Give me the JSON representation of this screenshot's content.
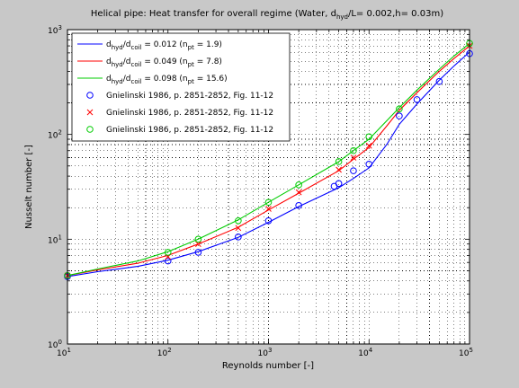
{
  "chart_data": {
    "type": "line",
    "title": {
      "pre": "Helical pipe: Heat transfer for overall regime (Water, d",
      "sub": "hyd",
      "post": "/L= 0.002,h= 0.03m)"
    },
    "xlabel": "Reynolds number [-]",
    "ylabel": "Nusselt number [-]",
    "xscale": "log",
    "yscale": "log",
    "xlim": [
      10,
      100000
    ],
    "ylim": [
      1,
      1000
    ],
    "grid": true,
    "legend_position": "top-left",
    "x_ticks": [
      {
        "base": "10",
        "exp": "1"
      },
      {
        "base": "10",
        "exp": "2"
      },
      {
        "base": "10",
        "exp": "3"
      },
      {
        "base": "10",
        "exp": "4"
      },
      {
        "base": "10",
        "exp": "5"
      }
    ],
    "y_ticks": [
      {
        "base": "10",
        "exp": "0"
      },
      {
        "base": "10",
        "exp": "1"
      },
      {
        "base": "10",
        "exp": "2"
      },
      {
        "base": "10",
        "exp": "3"
      }
    ],
    "series": [
      {
        "kind": "line",
        "color": "#0000ff",
        "legend": {
          "a": "d",
          "a_sub": "hyd",
          "b": "/d",
          "b_sub": "coil",
          "c": " = 0.012 (n",
          "c_sub": "pt",
          "d": " = 1.9)"
        },
        "x": [
          10,
          20,
          50,
          100,
          200,
          500,
          1000,
          2000,
          5000,
          7000,
          10000,
          15000,
          20000,
          30000,
          50000,
          70000,
          100000
        ],
        "y": [
          4.4,
          4.9,
          5.5,
          6.3,
          7.6,
          10.4,
          14.5,
          20.5,
          31,
          38,
          48,
          80,
          125,
          195,
          330,
          450,
          610
        ]
      },
      {
        "kind": "line",
        "color": "#ff0000",
        "legend": {
          "a": "d",
          "a_sub": "hyd",
          "b": "/d",
          "b_sub": "coil",
          "c": " = 0.049 (n",
          "c_sub": "pt",
          "d": " = 7.8)"
        },
        "x": [
          10,
          20,
          50,
          100,
          200,
          500,
          1000,
          2000,
          5000,
          7000,
          10000,
          15000,
          20000,
          30000,
          50000,
          70000,
          100000
        ],
        "y": [
          4.5,
          5.1,
          5.9,
          7.0,
          9.0,
          13.0,
          19.0,
          27.5,
          45,
          58,
          75,
          120,
          170,
          250,
          400,
          530,
          700
        ]
      },
      {
        "kind": "line",
        "color": "#00cc00",
        "legend": {
          "a": "d",
          "a_sub": "hyd",
          "b": "/d",
          "b_sub": "coil",
          "c": " = 0.098 (n",
          "c_sub": "pt",
          "d": " = 15.6)"
        },
        "x": [
          10,
          20,
          50,
          100,
          200,
          500,
          1000,
          2000,
          5000,
          7000,
          10000,
          15000,
          20000,
          30000,
          50000,
          70000,
          100000
        ],
        "y": [
          4.5,
          5.2,
          6.2,
          7.6,
          10.0,
          15.3,
          22.5,
          33,
          55,
          70,
          90,
          135,
          180,
          265,
          420,
          560,
          740
        ]
      },
      {
        "kind": "marker",
        "marker": "circle",
        "color": "#0000ff",
        "legend_text": "Gnielinski 1986, p. 2851-2852, Fig. 11-12",
        "x": [
          10,
          100,
          200,
          500,
          1000,
          2000,
          4500,
          5000,
          7000,
          10000,
          20000,
          30000,
          50000,
          100000
        ],
        "y": [
          4.4,
          6.2,
          7.5,
          10.5,
          15,
          21,
          32,
          34,
          45,
          52,
          150,
          215,
          320,
          590
        ]
      },
      {
        "kind": "marker",
        "marker": "x",
        "color": "#ff0000",
        "legend_text": "Gnielinski 1986, p. 2851-2852, Fig. 11-12",
        "x": [
          10,
          100,
          200,
          500,
          1000,
          2000,
          5000,
          7000,
          10000,
          100000
        ],
        "y": [
          4.5,
          6.8,
          9.0,
          12.8,
          19.5,
          28,
          46,
          60,
          78,
          700
        ]
      },
      {
        "kind": "marker",
        "marker": "circle",
        "color": "#00cc00",
        "legend_text": "Gnielinski 1986, p. 2851-2852, Fig. 11-12",
        "x": [
          10,
          100,
          200,
          500,
          1000,
          2000,
          5000,
          7000,
          10000,
          20000,
          100000
        ],
        "y": [
          4.5,
          7.5,
          10,
          15,
          22.5,
          33,
          55,
          70,
          95,
          175,
          740
        ]
      }
    ]
  }
}
